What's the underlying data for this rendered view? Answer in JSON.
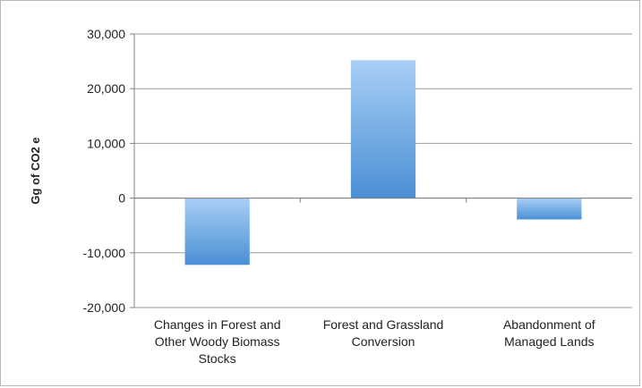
{
  "chart_data": {
    "type": "bar",
    "title": "",
    "xlabel": "",
    "ylabel": "Gg of CO2 e",
    "ylim": [
      -20000,
      30000
    ],
    "yticks": [
      30000,
      20000,
      10000,
      0,
      -10000,
      -20000
    ],
    "ytick_labels": [
      "30,000",
      "20,000",
      "10,000",
      "0",
      "-10,000",
      "-20,000"
    ],
    "categories": [
      [
        "Changes in Forest and",
        "Other Woody Biomass",
        "Stocks"
      ],
      [
        "Forest and Grassland",
        "Conversion"
      ],
      [
        "Abandonment of",
        "Managed Lands"
      ]
    ],
    "values": [
      -12200,
      25200,
      -3900
    ],
    "grid": true,
    "legend": "none",
    "colors": {
      "bar_top": "#a9cff5",
      "bar_bottom": "#4a8fd6",
      "grid": "#9a9a9a",
      "axis": "#808080"
    }
  }
}
